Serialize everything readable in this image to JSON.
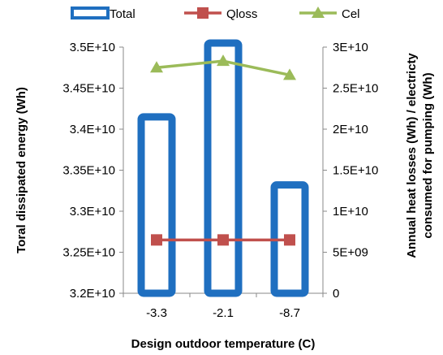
{
  "chart_data": {
    "type": "bar",
    "categories": [
      "-3.3",
      "-2.1",
      "-8.7"
    ],
    "series": [
      {
        "name": "Total",
        "kind": "bar",
        "axis": "left",
        "color": "#1F6FC0",
        "values": [
          34150000000.0,
          35050000000.0,
          33320000000.0
        ]
      },
      {
        "name": "Qloss",
        "kind": "line",
        "axis": "right",
        "color": "#C0504D",
        "values": 6500000000.0
      },
      {
        "name": "Cel",
        "kind": "line",
        "axis": "right",
        "color": "#9BBB59",
        "values": [
          27500000000.0,
          28300000000.0,
          26600000000.0
        ]
      }
    ],
    "xlabel": "Design outdoor temperature (C)",
    "ylabel_left": "Toral dissipated energy (Wh)",
    "ylabel_right_lines": [
      "Annual heat losses (Wh) / electricty",
      "consumed for pumping (Wh)"
    ],
    "ylim_left": [
      32000000000.0,
      35000000000.0
    ],
    "ylim_right": [
      0,
      30000000000.0
    ],
    "yticks_left": [
      "3.2E+10",
      "3.25E+10",
      "3.3E+10",
      "3.35E+10",
      "3.4E+10",
      "3.45E+10",
      "3.5E+10"
    ],
    "yticks_right": [
      "0",
      "5E+09",
      "1E+10",
      "1.5E+10",
      "2E+10",
      "2.5E+10",
      "3E+10"
    ],
    "legend_position": "top",
    "grid": false
  }
}
